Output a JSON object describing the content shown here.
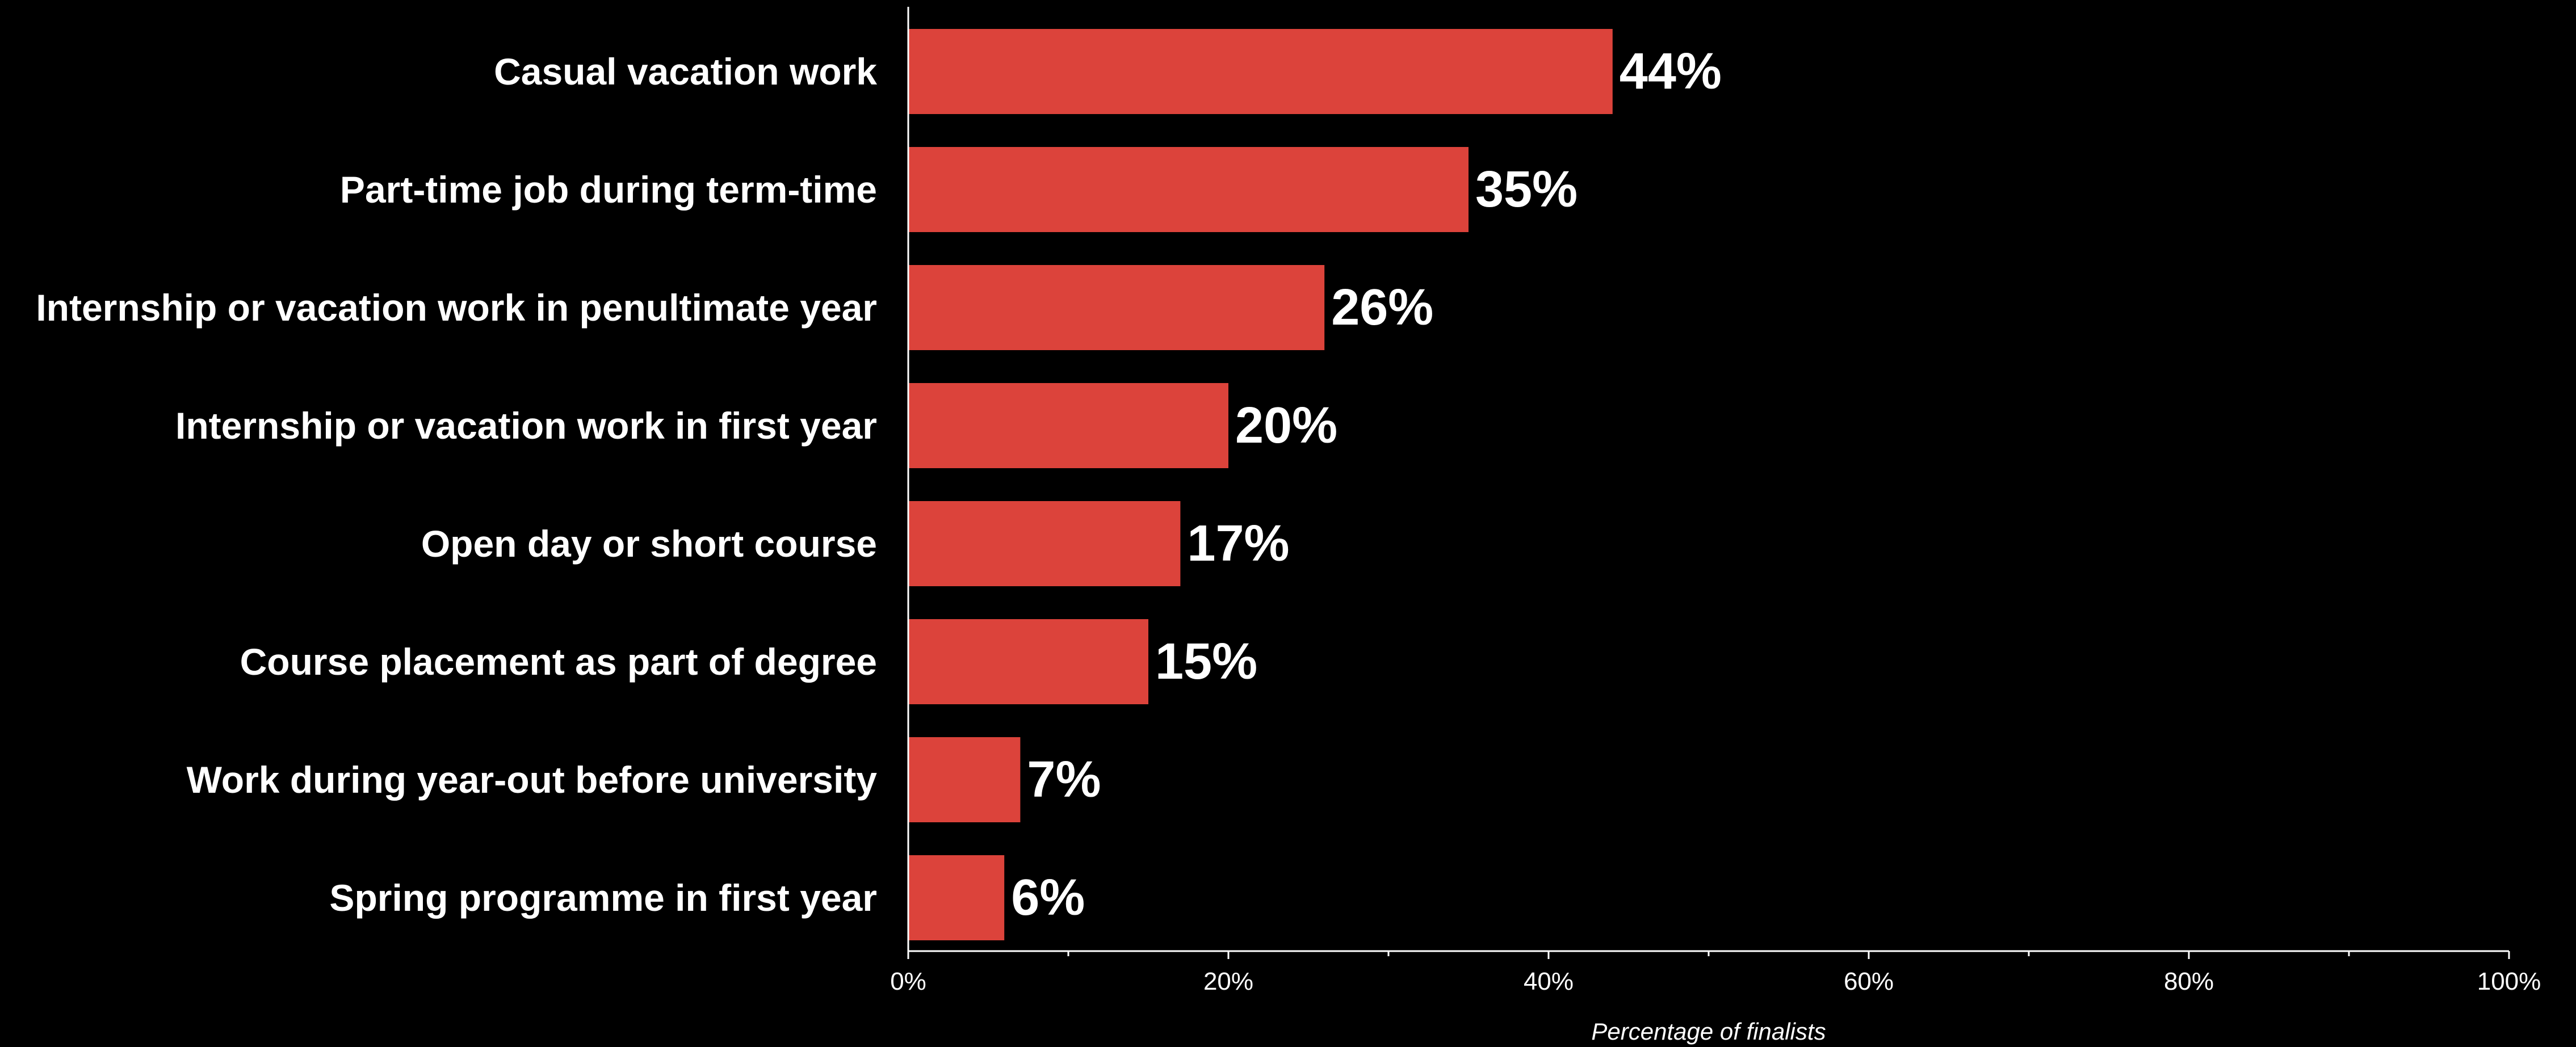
{
  "chart_data": {
    "type": "bar",
    "orientation": "horizontal",
    "categories": [
      "Casual vacation work",
      "Part-time job during term-time",
      "Internship or vacation work in penultimate year",
      "Internship or vacation work in first year",
      "Open day or short course",
      "Course placement as part of degree",
      "Work during year-out before university",
      "Spring programme in first year"
    ],
    "values": [
      44,
      35,
      26,
      20,
      17,
      15,
      7,
      6
    ],
    "data_labels": [
      "44%",
      "35%",
      "26%",
      "20%",
      "17%",
      "15%",
      "7%",
      "6%"
    ],
    "xlabel": "Percentage of finalists",
    "ylabel": "",
    "xlim": [
      0,
      100
    ],
    "x_ticks": [
      0,
      20,
      40,
      60,
      80,
      100
    ],
    "x_tick_labels": [
      "0%",
      "20%",
      "40%",
      "60%",
      "80%",
      "100%"
    ],
    "grid": false,
    "legend": "none",
    "colors": {
      "bar": "#dc433b",
      "background": "#000000",
      "text": "#ffffff",
      "axis": "#ffffff"
    }
  }
}
